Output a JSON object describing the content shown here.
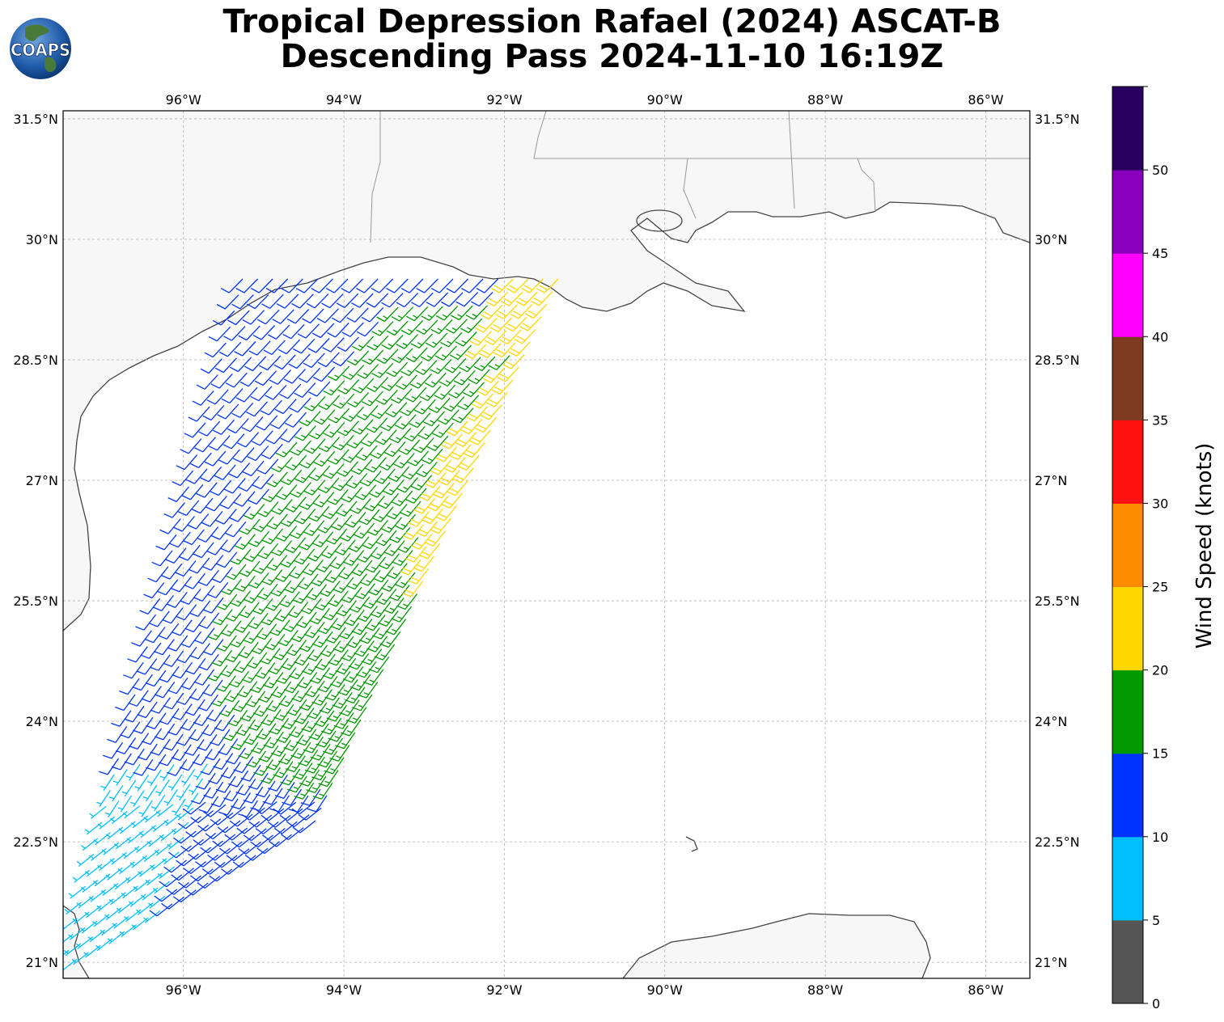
{
  "header": {
    "title_line1": "Tropical Depression Rafael (2024) ASCAT-B",
    "title_line2": "Descending Pass 2024-11-10 16:19Z",
    "logo_text": "COAPS"
  },
  "map": {
    "lon_labels": [
      "96°W",
      "94°W",
      "92°W",
      "90°W",
      "88°W",
      "86°W"
    ],
    "lat_labels": [
      "31.5°N",
      "30°N",
      "28.5°N",
      "27°N",
      "25.5°N",
      "24°N",
      "22.5°N",
      "21°N"
    ],
    "lon_values": [
      -96,
      -94,
      -92,
      -90,
      -88,
      -86
    ],
    "lat_values": [
      31.5,
      30,
      28.5,
      27,
      25.5,
      24,
      22.5,
      21
    ],
    "extent": {
      "lon_min": -97.5,
      "lon_max": -85.45,
      "lat_min": 20.8,
      "lat_max": 31.6
    },
    "wind_barbs_note_colors": {
      "0-5": "#555555",
      "5-10": "#00bfff",
      "10-15": "#0033ff",
      "15-20": "#009900",
      "20-25": "#ffd700",
      "25-30": "#ff8c00",
      "30-35": "#ff1111",
      "35-40": "#7f3b1f",
      "40-45": "#ff00ff",
      "45-50": "#8800bb",
      "50+": "#2a005e"
    }
  },
  "colorbar": {
    "label": "Wind Speed (knots)",
    "ticks": [
      "0",
      "5",
      "10",
      "15",
      "20",
      "25",
      "30",
      "35",
      "40",
      "45",
      "50"
    ],
    "colors": [
      "#555555",
      "#00bfff",
      "#0033ff",
      "#009900",
      "#ffd700",
      "#ff8c00",
      "#ff1111",
      "#7f3b1f",
      "#ff00ff",
      "#8800bb",
      "#2a005e"
    ]
  }
}
